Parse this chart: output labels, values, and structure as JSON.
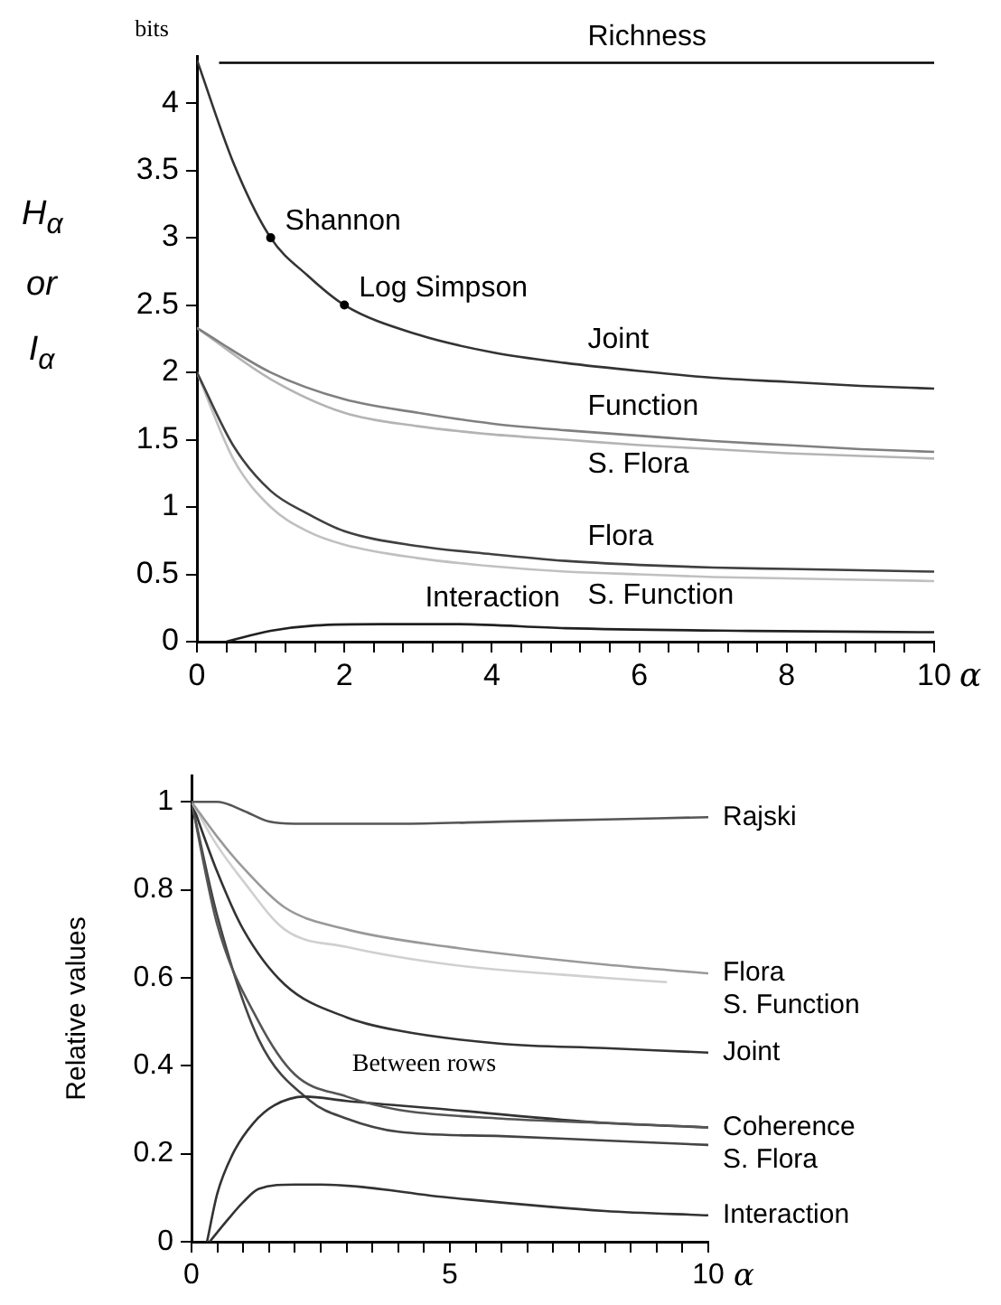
{
  "chart_data": [
    {
      "type": "line",
      "ylabel": "H$_{α}$ or I$_{α}$",
      "xlabel": "α",
      "marker": "none",
      "xlim": [
        0,
        10
      ],
      "ylim": [
        0,
        4.35
      ],
      "xticks": [
        0,
        {
          "value": 0.4,
          "label": null
        },
        {
          "value": 0.8,
          "label": null
        },
        {
          "value": 1.2,
          "label": null
        },
        {
          "value": 1.6,
          "label": null
        },
        2,
        {
          "value": 2.4,
          "label": null
        },
        {
          "value": 2.8,
          "label": null
        },
        {
          "value": 3.2,
          "label": null
        },
        {
          "value": 3.6,
          "label": null
        },
        4,
        {
          "value": 4.4,
          "label": null
        },
        {
          "value": 4.8,
          "label": null
        },
        {
          "value": 5.2,
          "label": null
        },
        {
          "value": 5.6,
          "label": null
        },
        6,
        {
          "value": 6.4,
          "label": null
        },
        {
          "value": 6.8,
          "label": null
        },
        {
          "value": 7.2,
          "label": null
        },
        {
          "value": 7.6,
          "label": null
        },
        8,
        {
          "value": 8.4,
          "label": null
        },
        {
          "value": 8.8,
          "label": null
        },
        {
          "value": 9.2,
          "label": null
        },
        {
          "value": 9.6,
          "label": null
        },
        10
      ],
      "yticks": [
        0,
        0.5,
        1,
        1.5,
        2,
        2.5,
        3,
        3.5,
        4
      ],
      "annotations": [
        "bits",
        {
          "text": "Shannon",
          "x": 1,
          "y": 3
        },
        {
          "text": "Log Simpson",
          "x": 2,
          "y": 2.5
        }
      ],
      "series": [
        {
          "name": "Richness",
          "color": "#000000",
          "x": [
            0.3,
            10
          ],
          "values": [
            4.3,
            4.3
          ]
        },
        {
          "name": "Joint",
          "color": "#333333",
          "x": [
            0,
            0.5,
            1,
            1.5,
            2,
            3,
            4,
            5,
            6,
            7,
            8,
            9,
            10
          ],
          "values": [
            4.32,
            3.55,
            3.0,
            2.72,
            2.5,
            2.28,
            2.15,
            2.07,
            2.01,
            1.96,
            1.93,
            1.9,
            1.88
          ]
        },
        {
          "name": "Function",
          "color": "#808080",
          "x": [
            0,
            1,
            2,
            3,
            4,
            5,
            6,
            7,
            8,
            9,
            10
          ],
          "values": [
            2.33,
            2.0,
            1.8,
            1.7,
            1.62,
            1.57,
            1.53,
            1.49,
            1.46,
            1.43,
            1.41
          ]
        },
        {
          "name": "S. Flora",
          "color": "#b4b4b4",
          "x": [
            0,
            1,
            2,
            3,
            4,
            5,
            6,
            7,
            8,
            9,
            10
          ],
          "values": [
            2.33,
            1.95,
            1.7,
            1.6,
            1.54,
            1.5,
            1.46,
            1.43,
            1.4,
            1.38,
            1.36
          ]
        },
        {
          "name": "Flora",
          "color": "#404040",
          "x": [
            0,
            0.5,
            1,
            1.5,
            2,
            3,
            4,
            5,
            6,
            7,
            8,
            9,
            10
          ],
          "values": [
            2.0,
            1.45,
            1.12,
            0.95,
            0.82,
            0.71,
            0.65,
            0.6,
            0.57,
            0.55,
            0.54,
            0.53,
            0.52
          ]
        },
        {
          "name": "S. Function",
          "color": "#c0c0c0",
          "x": [
            0,
            0.5,
            1,
            1.5,
            2,
            3,
            4,
            5,
            6,
            7,
            8,
            9,
            10
          ],
          "values": [
            2.0,
            1.35,
            1.0,
            0.82,
            0.72,
            0.62,
            0.56,
            0.52,
            0.5,
            0.48,
            0.47,
            0.46,
            0.45
          ]
        },
        {
          "name": "Interaction",
          "color": "#202020",
          "x": [
            0.4,
            1,
            1.6,
            2.5,
            3.5,
            5,
            7.5,
            10
          ],
          "values": [
            0,
            0.08,
            0.12,
            0.13,
            0.13,
            0.1,
            0.08,
            0.07
          ]
        }
      ]
    },
    {
      "type": "line",
      "ylabel": "Relative values",
      "xlabel": "α",
      "marker": "none",
      "xlim": [
        0,
        10
      ],
      "ylim": [
        0,
        1.06
      ],
      "xticks": [
        0,
        {
          "value": 0.5,
          "label": null
        },
        {
          "value": 1,
          "label": null
        },
        {
          "value": 1.5,
          "label": null
        },
        {
          "value": 2,
          "label": null
        },
        {
          "value": 2.5,
          "label": null
        },
        {
          "value": 3,
          "label": null
        },
        {
          "value": 3.5,
          "label": null
        },
        {
          "value": 4,
          "label": null
        },
        {
          "value": 4.5,
          "label": null
        },
        5,
        {
          "value": 5.5,
          "label": null
        },
        {
          "value": 6,
          "label": null
        },
        {
          "value": 6.5,
          "label": null
        },
        {
          "value": 7,
          "label": null
        },
        {
          "value": 7.5,
          "label": null
        },
        {
          "value": 8,
          "label": null
        },
        {
          "value": 8.5,
          "label": null
        },
        {
          "value": 9,
          "label": null
        },
        {
          "value": 9.5,
          "label": null
        },
        10
      ],
      "yticks": [
        0,
        0.2,
        0.4,
        0.6,
        0.8,
        1
      ],
      "annotations": [
        {
          "text": "Between rows",
          "x": 4.5,
          "y": 0.3
        }
      ],
      "series": [
        {
          "name": "Rajski",
          "color": "#555555",
          "x": [
            0,
            0.5,
            1,
            1.5,
            2,
            4,
            6,
            8,
            10
          ],
          "values": [
            1,
            1,
            0.98,
            0.955,
            0.95,
            0.95,
            0.955,
            0.96,
            0.965
          ]
        },
        {
          "name": "Flora",
          "color": "#999999",
          "x": [
            0,
            0.5,
            1,
            1.8,
            3,
            5,
            8,
            10
          ],
          "values": [
            1,
            0.92,
            0.85,
            0.76,
            0.71,
            0.67,
            0.63,
            0.61
          ]
        },
        {
          "name": "S. Function",
          "color": "#d0d0d0",
          "x": [
            0,
            0.5,
            1,
            1.8,
            3,
            5,
            8,
            9.2
          ],
          "values": [
            1,
            0.9,
            0.82,
            0.71,
            0.67,
            0.63,
            0.6,
            0.59
          ]
        },
        {
          "name": "Joint",
          "color": "#333333",
          "x": [
            0,
            0.5,
            1,
            1.8,
            3,
            4,
            6,
            8,
            10
          ],
          "values": [
            1,
            0.84,
            0.71,
            0.585,
            0.51,
            0.48,
            0.45,
            0.44,
            0.43
          ]
        },
        {
          "color": "#555555",
          "x": [
            0,
            0.5,
            1.3,
            2,
            3,
            4,
            6,
            8,
            10
          ],
          "values": [
            1,
            0.72,
            0.5,
            0.38,
            0.33,
            0.3,
            0.28,
            0.27,
            0.26
          ]
        },
        {
          "name": "Coherence",
          "color": "#333333",
          "x": [
            0.3,
            0.5,
            0.8,
            1.2,
            1.6,
            2.2,
            3,
            5,
            8,
            10
          ],
          "values": [
            0,
            0.11,
            0.2,
            0.27,
            0.31,
            0.33,
            0.32,
            0.3,
            0.27,
            0.26
          ]
        },
        {
          "name": "S. Flora",
          "color": "#444444",
          "x": [
            0,
            0.5,
            1.3,
            2.3,
            3,
            4,
            6,
            8,
            10
          ],
          "values": [
            1,
            0.74,
            0.46,
            0.32,
            0.28,
            0.25,
            0.24,
            0.23,
            0.22
          ]
        },
        {
          "name": "Interaction",
          "color": "#333333",
          "x": [
            0.35,
            0.7,
            1,
            1.3,
            2,
            2.5,
            5,
            8,
            10
          ],
          "values": [
            0,
            0.05,
            0.09,
            0.12,
            0.13,
            0.13,
            0.1,
            0.07,
            0.06
          ]
        }
      ]
    }
  ]
}
